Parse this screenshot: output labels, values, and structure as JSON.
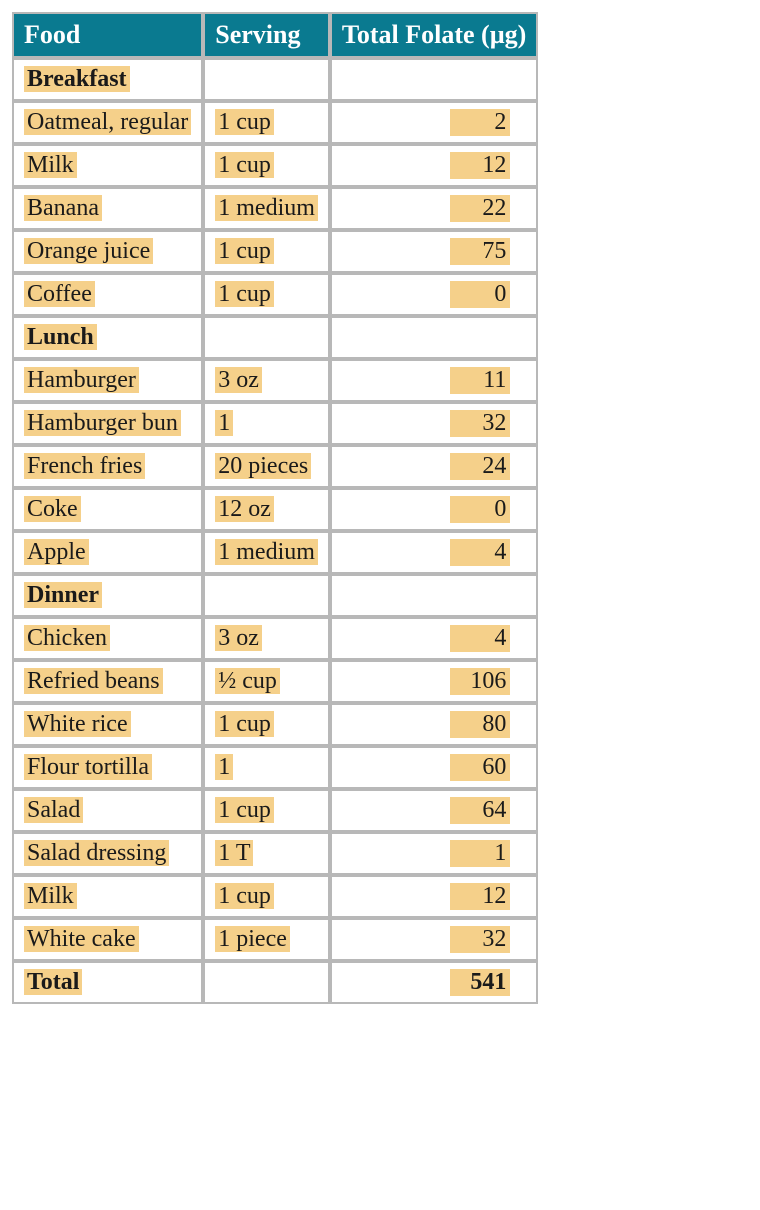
{
  "table": {
    "headers": {
      "food": "Food",
      "serving": "Serving",
      "folate": "Total Folate (µg)"
    },
    "header_bg": "#0a7a90",
    "header_fg": "#ffffff",
    "highlight_bg": "#f5d08a",
    "border_color": "#b8b8b8",
    "rows": [
      {
        "type": "section",
        "food": "Breakfast"
      },
      {
        "type": "item",
        "food": "Oatmeal, regular",
        "serving": "1 cup",
        "folate": "2"
      },
      {
        "type": "item",
        "food": "Milk",
        "serving": "1 cup",
        "folate": "12"
      },
      {
        "type": "item",
        "food": "Banana",
        "serving": "1 medium",
        "folate": "22"
      },
      {
        "type": "item",
        "food": "Orange juice",
        "serving": "1 cup",
        "folate": "75"
      },
      {
        "type": "item",
        "food": "Coffee",
        "serving": "1 cup",
        "folate": "0"
      },
      {
        "type": "section",
        "food": "Lunch"
      },
      {
        "type": "item",
        "food": "Hamburger",
        "serving": "3 oz",
        "folate": "11"
      },
      {
        "type": "item",
        "food": "Hamburger bun",
        "serving": "1",
        "folate": "32"
      },
      {
        "type": "item",
        "food": "French fries",
        "serving": "20 pieces",
        "folate": "24"
      },
      {
        "type": "item",
        "food": "Coke",
        "serving": "12 oz",
        "folate": "0"
      },
      {
        "type": "item",
        "food": "Apple",
        "serving": "1 medium",
        "folate": "4"
      },
      {
        "type": "section",
        "food": "Dinner"
      },
      {
        "type": "item",
        "food": "Chicken",
        "serving": "3 oz",
        "folate": "4"
      },
      {
        "type": "item",
        "food": "Refried beans",
        "serving": "½ cup",
        "folate": "106"
      },
      {
        "type": "item",
        "food": "White rice",
        "serving": "1 cup",
        "folate": "80"
      },
      {
        "type": "item",
        "food": "Flour tortilla",
        "serving": "1",
        "folate": "60"
      },
      {
        "type": "item",
        "food": "Salad",
        "serving": "1 cup",
        "folate": "64"
      },
      {
        "type": "item",
        "food": "Salad dressing",
        "serving": "1 T",
        "folate": "1"
      },
      {
        "type": "item",
        "food": "Milk",
        "serving": "1 cup",
        "folate": "12"
      },
      {
        "type": "item",
        "food": "White cake",
        "serving": "1 piece",
        "folate": "32"
      },
      {
        "type": "total",
        "food": "Total",
        "folate": "541"
      }
    ]
  }
}
